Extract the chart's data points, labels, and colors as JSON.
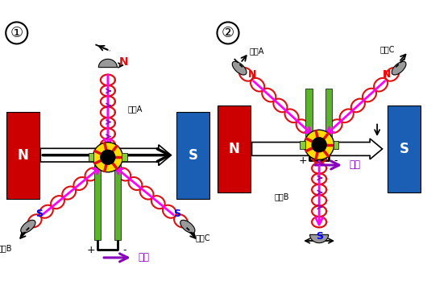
{
  "bg_color": "#ffffff",
  "red_magnet_color": "#cc0000",
  "blue_magnet_color": "#1a5fb4",
  "green_rail_color": "#5ab52a",
  "coil_color": "#dd1111",
  "purple_arrow_color": "#8800bb",
  "magenta_arrow_color": "#ff00ff",
  "gray_brush_color": "#999999",
  "yellow_ring_color": "#ffdd00",
  "label1": "①",
  "label2": "②",
  "coilA": "线圈A",
  "coilB": "线圈B",
  "coilC": "线圈C",
  "N_label": "N",
  "S_label": "S",
  "current_label": "电流"
}
